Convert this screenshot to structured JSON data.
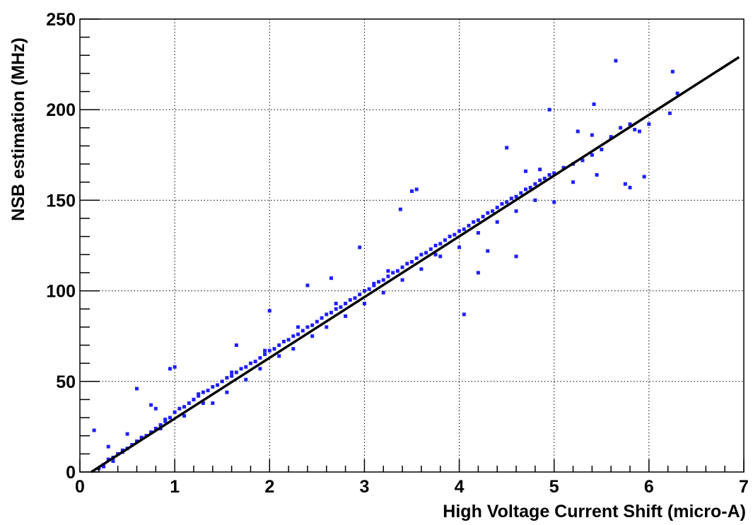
{
  "chart_data": {
    "type": "scatter",
    "title": "",
    "xlabel": "High Voltage Current Shift (micro-A)",
    "ylabel": "NSB estimation (MHz)",
    "xlim": [
      0,
      7
    ],
    "ylim": [
      0,
      250
    ],
    "xticks": [
      0,
      1,
      2,
      3,
      4,
      5,
      6,
      7
    ],
    "yticks": [
      0,
      50,
      100,
      150,
      200,
      250
    ],
    "x_tick_labels": [
      "0",
      "1",
      "2",
      "3",
      "4",
      "5",
      "6",
      "7"
    ],
    "y_tick_labels": [
      "0",
      "50",
      "100",
      "150",
      "200",
      "250"
    ],
    "grid": true,
    "legend": "none",
    "colors": {
      "points": "#1f1fff",
      "fit_line": "#000000",
      "grid": "#000000",
      "axes": "#000000"
    },
    "fit_line": {
      "type": "linear",
      "x": [
        0.12,
        6.95
      ],
      "y": [
        0,
        229
      ]
    },
    "series": [
      {
        "values": [
          [
            0.15,
            23
          ],
          [
            0.2,
            2
          ],
          [
            0.25,
            4
          ],
          [
            0.3,
            7
          ],
          [
            0.35,
            8
          ],
          [
            0.4,
            10
          ],
          [
            0.45,
            12
          ],
          [
            0.5,
            13
          ],
          [
            0.55,
            15
          ],
          [
            0.6,
            17
          ],
          [
            0.65,
            19
          ],
          [
            0.7,
            20
          ],
          [
            0.75,
            22
          ],
          [
            0.8,
            24
          ],
          [
            0.85,
            26
          ],
          [
            0.9,
            28
          ],
          [
            0.95,
            30
          ],
          [
            1.0,
            33
          ],
          [
            1.05,
            35
          ],
          [
            1.1,
            36
          ],
          [
            1.15,
            38
          ],
          [
            1.2,
            40
          ],
          [
            1.25,
            42
          ],
          [
            1.3,
            44
          ],
          [
            1.35,
            45
          ],
          [
            1.4,
            47
          ],
          [
            1.45,
            48
          ],
          [
            1.5,
            50
          ],
          [
            1.55,
            52
          ],
          [
            1.6,
            53
          ],
          [
            1.65,
            55
          ],
          [
            1.7,
            57
          ],
          [
            1.75,
            58
          ],
          [
            1.8,
            60
          ],
          [
            1.85,
            61
          ],
          [
            1.9,
            63
          ],
          [
            1.95,
            65
          ],
          [
            2.0,
            67
          ],
          [
            2.05,
            68
          ],
          [
            2.1,
            70
          ],
          [
            2.15,
            72
          ],
          [
            2.2,
            73
          ],
          [
            2.25,
            75
          ],
          [
            2.3,
            76
          ],
          [
            2.35,
            78
          ],
          [
            2.4,
            80
          ],
          [
            2.45,
            81
          ],
          [
            2.5,
            83
          ],
          [
            2.55,
            85
          ],
          [
            2.6,
            87
          ],
          [
            2.65,
            88
          ],
          [
            2.7,
            90
          ],
          [
            2.75,
            91
          ],
          [
            2.8,
            93
          ],
          [
            2.85,
            95
          ],
          [
            2.9,
            96
          ],
          [
            2.95,
            98
          ],
          [
            3.0,
            100
          ],
          [
            3.05,
            101
          ],
          [
            3.1,
            103
          ],
          [
            3.15,
            105
          ],
          [
            3.2,
            106
          ],
          [
            3.25,
            108
          ],
          [
            3.3,
            110
          ],
          [
            3.35,
            111
          ],
          [
            3.4,
            113
          ],
          [
            3.45,
            115
          ],
          [
            3.5,
            116
          ],
          [
            3.55,
            118
          ],
          [
            3.6,
            120
          ],
          [
            3.65,
            121
          ],
          [
            3.7,
            123
          ],
          [
            3.75,
            125
          ],
          [
            3.8,
            126
          ],
          [
            3.85,
            128
          ],
          [
            3.9,
            130
          ],
          [
            3.95,
            131
          ],
          [
            4.0,
            133
          ],
          [
            4.05,
            134
          ],
          [
            4.1,
            136
          ],
          [
            4.15,
            138
          ],
          [
            4.2,
            139
          ],
          [
            4.25,
            141
          ],
          [
            4.3,
            143
          ],
          [
            4.35,
            144
          ],
          [
            4.4,
            146
          ],
          [
            4.45,
            148
          ],
          [
            4.5,
            149
          ],
          [
            4.55,
            151
          ],
          [
            4.6,
            152
          ],
          [
            4.65,
            154
          ],
          [
            4.7,
            156
          ],
          [
            4.75,
            157
          ],
          [
            4.8,
            159
          ],
          [
            4.85,
            161
          ],
          [
            4.9,
            162
          ],
          [
            4.95,
            164
          ],
          [
            5.0,
            165
          ],
          [
            5.1,
            168
          ],
          [
            5.2,
            170
          ],
          [
            5.3,
            172
          ],
          [
            5.4,
            175
          ],
          [
            5.5,
            178
          ],
          [
            5.6,
            185
          ],
          [
            5.7,
            190
          ],
          [
            5.8,
            192
          ],
          [
            5.9,
            188
          ],
          [
            6.0,
            192
          ],
          [
            6.25,
            221
          ],
          [
            6.3,
            209
          ],
          [
            6.22,
            198
          ],
          [
            5.65,
            227
          ],
          [
            4.95,
            200
          ],
          [
            5.42,
            203
          ],
          [
            4.5,
            179
          ],
          [
            4.05,
            87
          ],
          [
            3.55,
            156
          ],
          [
            3.5,
            155
          ],
          [
            3.38,
            145
          ],
          [
            2.95,
            124
          ],
          [
            2.65,
            107
          ],
          [
            2.4,
            103
          ],
          [
            2.0,
            89
          ],
          [
            1.65,
            70
          ],
          [
            1.0,
            58
          ],
          [
            0.95,
            57
          ],
          [
            0.6,
            46
          ],
          [
            0.75,
            37
          ],
          [
            0.8,
            35
          ],
          [
            1.2,
            40
          ],
          [
            1.4,
            38
          ],
          [
            0.3,
            14
          ],
          [
            0.5,
            21
          ],
          [
            0.85,
            24
          ],
          [
            1.1,
            31
          ],
          [
            1.3,
            38
          ],
          [
            1.55,
            44
          ],
          [
            1.75,
            51
          ],
          [
            1.9,
            57
          ],
          [
            2.1,
            64
          ],
          [
            2.25,
            68
          ],
          [
            2.45,
            75
          ],
          [
            2.6,
            80
          ],
          [
            2.8,
            86
          ],
          [
            3.0,
            93
          ],
          [
            3.2,
            99
          ],
          [
            3.4,
            106
          ],
          [
            3.6,
            112
          ],
          [
            3.8,
            119
          ],
          [
            4.0,
            124
          ],
          [
            4.2,
            132
          ],
          [
            4.4,
            138
          ],
          [
            4.6,
            144
          ],
          [
            4.8,
            150
          ],
          [
            5.0,
            149
          ],
          [
            5.2,
            160
          ],
          [
            5.45,
            164
          ],
          [
            5.8,
            157
          ],
          [
            5.75,
            159
          ],
          [
            5.95,
            163
          ],
          [
            5.85,
            189
          ],
          [
            5.4,
            186
          ],
          [
            5.25,
            188
          ],
          [
            4.85,
            167
          ],
          [
            4.7,
            166
          ],
          [
            4.3,
            122
          ],
          [
            4.2,
            110
          ],
          [
            4.6,
            119
          ],
          [
            3.25,
            111
          ],
          [
            3.75,
            120
          ],
          [
            3.1,
            104
          ],
          [
            2.7,
            93
          ],
          [
            2.3,
            80
          ],
          [
            1.95,
            67
          ],
          [
            1.6,
            55
          ],
          [
            1.25,
            43
          ],
          [
            0.9,
            29
          ],
          [
            0.65,
            19
          ],
          [
            0.45,
            11
          ],
          [
            0.35,
            6
          ],
          [
            0.25,
            3
          ]
        ]
      }
    ]
  }
}
